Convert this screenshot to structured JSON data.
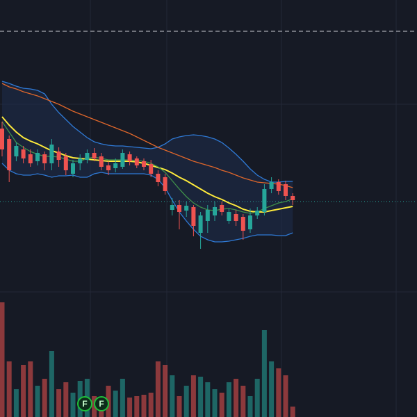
{
  "chart_data": {
    "type": "candlestick",
    "ylim": [
      0,
      600
    ],
    "vlim": [
      0,
      600
    ],
    "up_color": "#26a69a",
    "down_color": "#ef5350",
    "open": [
      415,
      400,
      375,
      385,
      378,
      368,
      378,
      365,
      382,
      375,
      350,
      365,
      370,
      380,
      375,
      362,
      358,
      360,
      378,
      372,
      368,
      364,
      350,
      345,
      298,
      305,
      297,
      302,
      265,
      282,
      290,
      305,
      282,
      292,
      288,
      270,
      290,
      295,
      328,
      338,
      335,
      318
    ],
    "close": [
      385,
      355,
      390,
      372,
      365,
      380,
      365,
      392,
      370,
      355,
      365,
      372,
      380,
      372,
      360,
      355,
      365,
      380,
      368,
      362,
      360,
      350,
      338,
      325,
      305,
      295,
      304,
      275,
      290,
      298,
      302,
      295,
      295,
      282,
      268,
      290,
      297,
      328,
      338,
      325,
      318,
      312
    ],
    "high": [
      425,
      405,
      395,
      390,
      385,
      385,
      382,
      400,
      388,
      380,
      370,
      378,
      385,
      387,
      380,
      368,
      372,
      385,
      382,
      375,
      372,
      370,
      355,
      350,
      315,
      312,
      310,
      305,
      295,
      305,
      310,
      310,
      300,
      298,
      292,
      300,
      302,
      335,
      345,
      342,
      340,
      322
    ],
    "low": [
      375,
      338,
      368,
      365,
      360,
      362,
      355,
      355,
      360,
      348,
      345,
      355,
      365,
      368,
      355,
      348,
      352,
      357,
      362,
      358,
      355,
      345,
      332,
      320,
      290,
      270,
      288,
      260,
      242,
      265,
      282,
      290,
      278,
      275,
      255,
      265,
      285,
      290,
      322,
      320,
      312,
      305
    ],
    "volume": [
      165,
      80,
      40,
      75,
      80,
      45,
      55,
      95,
      40,
      50,
      35,
      52,
      55,
      30,
      28,
      45,
      38,
      55,
      28,
      30,
      32,
      35,
      80,
      75,
      60,
      30,
      45,
      60,
      58,
      50,
      40,
      35,
      50,
      55,
      45,
      30,
      55,
      125,
      80,
      70,
      60,
      15
    ],
    "lines": [
      {
        "color": "#2f7ad6",
        "values": [
          483,
          480,
          476,
          473,
          472,
          470,
          465,
          450,
          438,
          428,
          418,
          410,
          402,
          396,
          393,
          391,
          390,
          390,
          389,
          388,
          387,
          386,
          388,
          393,
          400,
          403,
          405,
          406,
          405,
          403,
          400,
          395,
          387,
          378,
          368,
          357,
          348,
          342,
          338,
          338,
          339,
          339
        ]
      },
      {
        "color": "#2f7ad6",
        "values": [
          365,
          355,
          350,
          348,
          348,
          350,
          348,
          345,
          347,
          347,
          348,
          345,
          345,
          350,
          352,
          350,
          350,
          350,
          350,
          350,
          350,
          348,
          342,
          330,
          312,
          295,
          282,
          270,
          260,
          255,
          252,
          252,
          253,
          255,
          257,
          260,
          262,
          262,
          262,
          261,
          261,
          265
        ]
      },
      {
        "color": "#e0672b",
        "values": [
          480,
          475,
          472,
          468,
          465,
          462,
          458,
          454,
          450,
          445,
          440,
          436,
          432,
          428,
          424,
          420,
          416,
          412,
          408,
          403,
          398,
          393,
          388,
          384,
          380,
          376,
          372,
          368,
          365,
          362,
          359,
          355,
          352,
          348,
          344,
          341,
          338,
          337,
          336,
          335,
          333,
          330
        ]
      },
      {
        "color": "#ffeb3b",
        "values": [
          432,
          420,
          410,
          402,
          397,
          393,
          388,
          383,
          380,
          376,
          373,
          372,
          371,
          370,
          369,
          368,
          368,
          368,
          368,
          367,
          365,
          362,
          359,
          356,
          351,
          345,
          340,
          334,
          328,
          322,
          317,
          313,
          308,
          304,
          299,
          296,
          295,
          295,
          297,
          299,
          301,
          303
        ]
      },
      {
        "color": "#3f8f4a",
        "values": [
          425,
          410,
          395,
          388,
          382,
          378,
          375,
          375,
          374,
          371,
          368,
          368,
          372,
          374,
          372,
          370,
          370,
          370,
          370,
          369,
          368,
          365,
          360,
          352,
          340,
          328,
          317,
          308,
          302,
          298,
          297,
          299,
          300,
          298,
          295,
          293,
          295,
          300,
          304,
          308,
          310,
          314
        ]
      }
    ],
    "band_fill": "#1e2c4a",
    "levels": [
      {
        "value": 555,
        "color": "#c9ccd3",
        "style": "dashed"
      },
      {
        "value": 310,
        "color": "#26a69a",
        "style": "dotted"
      }
    ],
    "annotations": [
      {
        "label": "F"
      },
      {
        "label": "F"
      }
    ]
  }
}
